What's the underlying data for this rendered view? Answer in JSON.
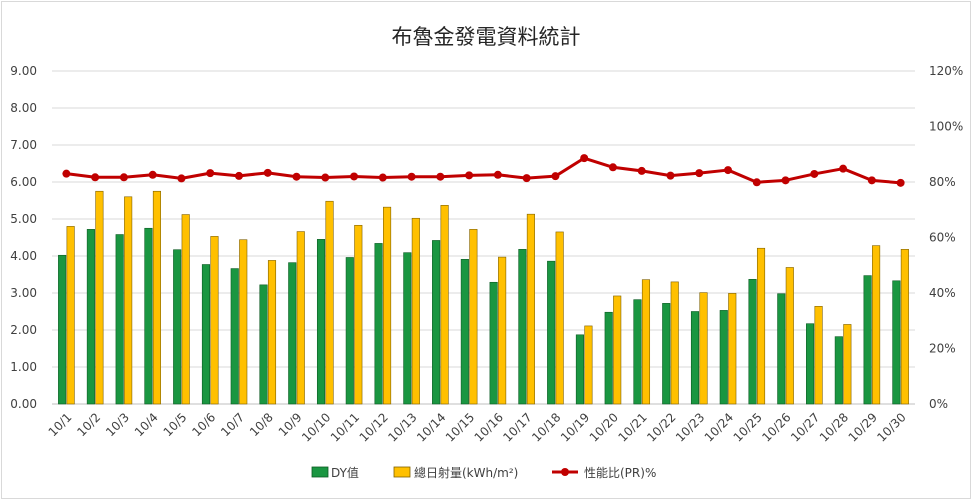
{
  "chart_data": {
    "type": "bar",
    "title": "布魯金發電資料統計",
    "categories": [
      "10/1",
      "10/2",
      "10/3",
      "10/4",
      "10/5",
      "10/6",
      "10/7",
      "10/8",
      "10/9",
      "10/10",
      "10/11",
      "10/12",
      "10/13",
      "10/14",
      "10/15",
      "10/16",
      "10/17",
      "10/18",
      "10/19",
      "10/20",
      "10/21",
      "10/22",
      "10/23",
      "10/24",
      "10/25",
      "10/26",
      "10/27",
      "10/28",
      "10/29",
      "10/30"
    ],
    "series": [
      {
        "name": "DY值",
        "kind": "bar",
        "axis": "left",
        "color": "#1a9641",
        "values": [
          4.02,
          4.72,
          4.58,
          4.75,
          4.17,
          3.77,
          3.66,
          3.22,
          3.82,
          4.45,
          3.96,
          4.34,
          4.09,
          4.42,
          3.91,
          3.29,
          4.18,
          3.86,
          1.87,
          2.48,
          2.82,
          2.72,
          2.5,
          2.53,
          3.37,
          2.98,
          2.17,
          1.82,
          3.47,
          3.33
        ]
      },
      {
        "name": "總日射量(kWh/m²)",
        "kind": "bar",
        "axis": "left",
        "color": "#ffc000",
        "values": [
          4.8,
          5.75,
          5.6,
          5.75,
          5.12,
          4.53,
          4.44,
          3.88,
          4.66,
          5.48,
          4.83,
          5.32,
          5.02,
          5.37,
          4.72,
          3.97,
          5.13,
          4.65,
          2.11,
          2.92,
          3.36,
          3.3,
          3.01,
          2.99,
          4.21,
          3.69,
          2.64,
          2.15,
          4.28,
          4.18
        ]
      },
      {
        "name": "性能比(PR)%",
        "kind": "line",
        "axis": "right",
        "color": "#c00000",
        "values": [
          83.0,
          81.7,
          81.7,
          82.6,
          81.3,
          83.2,
          82.2,
          83.3,
          81.9,
          81.6,
          82.0,
          81.6,
          81.9,
          81.9,
          82.4,
          82.6,
          81.4,
          82.1,
          88.6,
          85.3,
          84.0,
          82.3,
          83.2,
          84.3,
          79.9,
          80.6,
          82.9,
          84.8,
          80.6,
          79.7
        ]
      }
    ],
    "y_left": {
      "min": 0,
      "max": 9,
      "ticks": [
        "0.00",
        "1.00",
        "2.00",
        "3.00",
        "4.00",
        "5.00",
        "6.00",
        "7.00",
        "8.00",
        "9.00"
      ]
    },
    "y_right": {
      "min": 0,
      "max": 120,
      "ticks": [
        "0%",
        "20%",
        "40%",
        "60%",
        "80%",
        "100%",
        "120%"
      ]
    },
    "grid": true,
    "legend_position": "bottom"
  }
}
